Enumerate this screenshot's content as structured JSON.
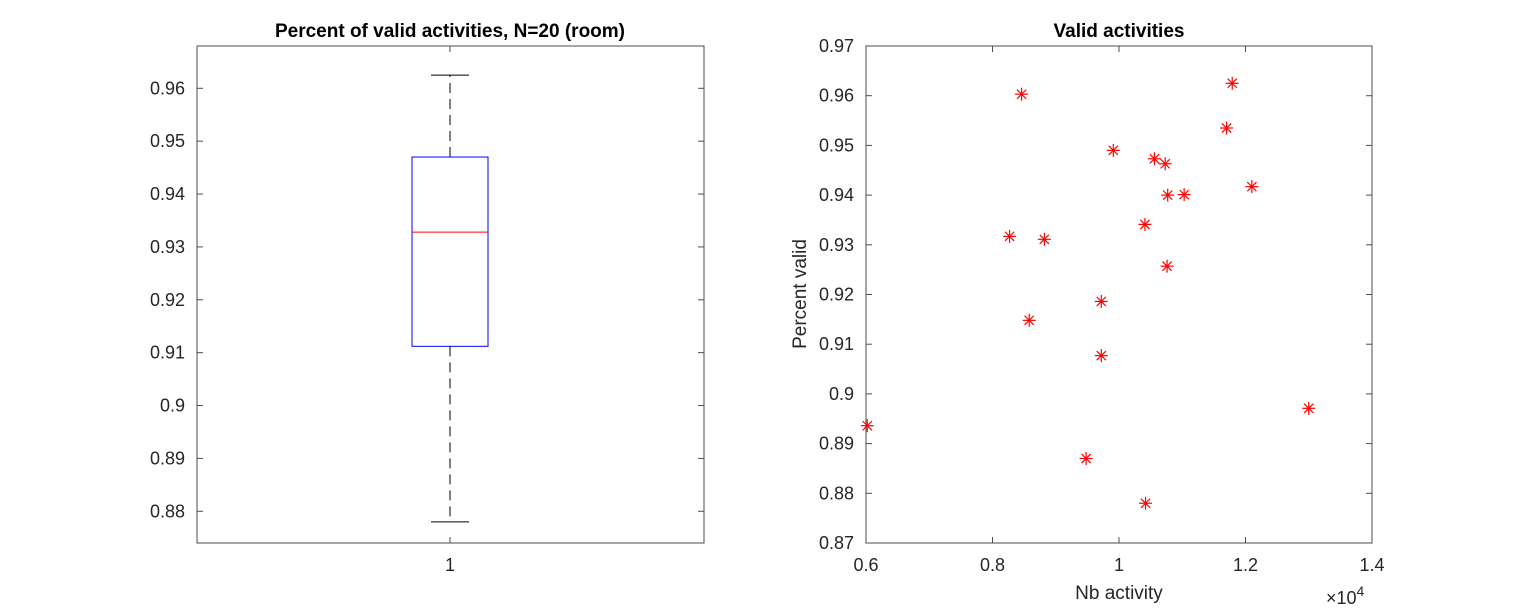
{
  "chart_data": [
    {
      "type": "box",
      "title": "Percent of valid activities, N=20 (room)",
      "xlabel": "",
      "ylabel": "",
      "categories": [
        "1"
      ],
      "ylim": [
        0.874,
        0.968
      ],
      "yticks": [
        0.88,
        0.89,
        0.9,
        0.91,
        0.92,
        0.93,
        0.94,
        0.95,
        0.96
      ],
      "ytick_labels": [
        "0.88",
        "0.89",
        "0.9",
        "0.91",
        "0.92",
        "0.93",
        "0.94",
        "0.95",
        "0.96"
      ],
      "box": {
        "min": 0.878,
        "q1": 0.9112,
        "median": 0.9328,
        "q3": 0.947,
        "max": 0.9625
      },
      "colors": {
        "box": "#0000ff",
        "median": "#ff0000",
        "whisker": "#000000"
      }
    },
    {
      "type": "scatter",
      "title": "Valid activities",
      "xlabel": "Nb activity",
      "ylabel": "Percent valid",
      "x_exponent_label": "×10",
      "x_exponent_power": "4",
      "xlim": [
        0.6,
        1.4
      ],
      "ylim": [
        0.87,
        0.97
      ],
      "xticks": [
        0.6,
        0.8,
        1.0,
        1.2,
        1.4
      ],
      "xtick_labels": [
        "0.6",
        "0.8",
        "1",
        "1.2",
        "1.4"
      ],
      "yticks": [
        0.87,
        0.88,
        0.89,
        0.9,
        0.91,
        0.92,
        0.93,
        0.94,
        0.95,
        0.96,
        0.97
      ],
      "ytick_labels": [
        "0.87",
        "0.88",
        "0.89",
        "0.9",
        "0.91",
        "0.92",
        "0.93",
        "0.94",
        "0.95",
        "0.96",
        "0.97"
      ],
      "marker": "*",
      "colors": {
        "marker": "#ff0000"
      },
      "x": [
        0.602,
        0.827,
        0.846,
        0.858,
        0.882,
        0.948,
        0.972,
        0.972,
        0.991,
        1.041,
        1.042,
        1.056,
        1.073,
        1.076,
        1.077,
        1.103,
        1.17,
        1.179,
        1.21,
        1.3
      ],
      "y": [
        0.8936,
        0.9317,
        0.9603,
        0.9148,
        0.9311,
        0.887,
        0.9186,
        0.9077,
        0.949,
        0.9341,
        0.878,
        0.9473,
        0.9463,
        0.9257,
        0.94,
        0.9401,
        0.9535,
        0.9625,
        0.9417,
        0.8971
      ]
    }
  ]
}
